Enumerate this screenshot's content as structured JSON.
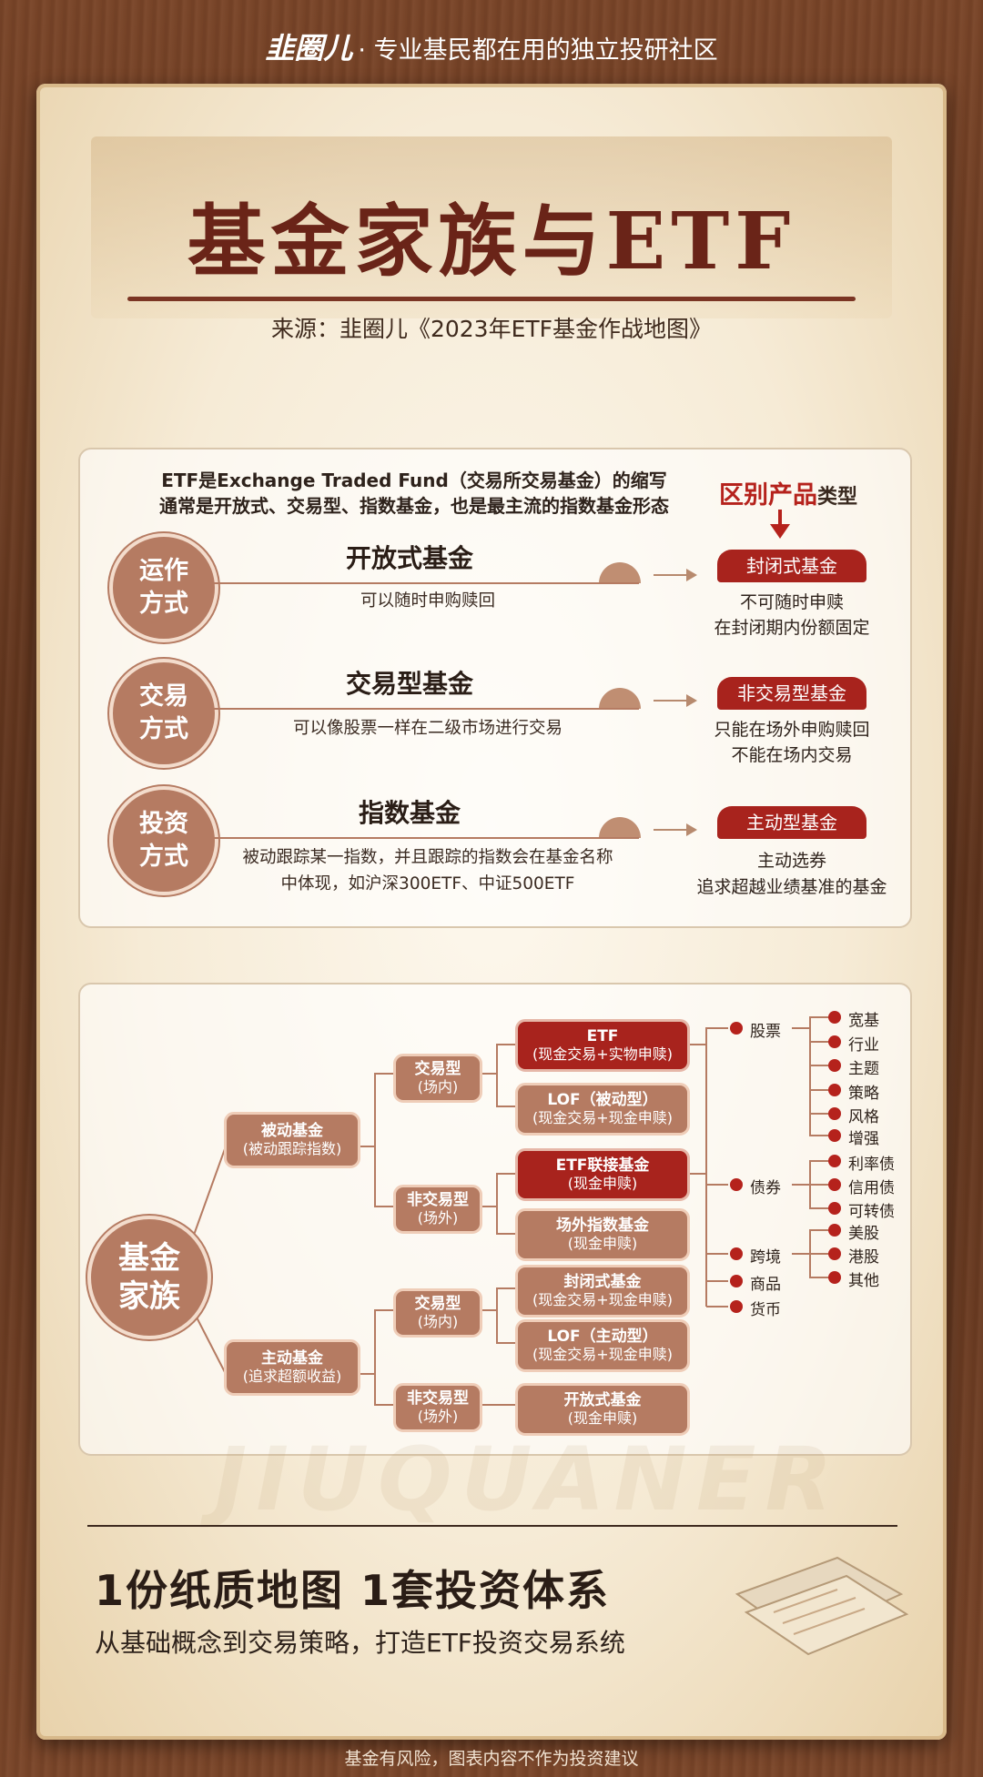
{
  "header": {
    "logo": "韭圈儿",
    "tagline": "· 专业基民都在用的独立投研社区"
  },
  "title": "基金家族与ETF",
  "source": "来源：韭圈儿《2023年ETF基金作战地图》",
  "intro": {
    "line1": "ETF是Exchange Traded Fund（交易所交易基金）的缩写",
    "line2": "通常是开放式、交易型、指数基金，也是最主流的指数基金形态"
  },
  "diff_header": {
    "main": "区别产品",
    "suffix": "类型"
  },
  "rows": [
    {
      "circle": [
        "运作",
        "方式"
      ],
      "name": "开放式基金",
      "desc": [
        "可以随时申购赎回"
      ],
      "tag": "封闭式基金",
      "tag_desc": [
        "不可随时申赎",
        "在封闭期内份额固定"
      ]
    },
    {
      "circle": [
        "交易",
        "方式"
      ],
      "name": "交易型基金",
      "desc": [
        "可以像股票一样在二级市场进行交易"
      ],
      "tag": "非交易型基金",
      "tag_desc": [
        "只能在场外申购赎回",
        "不能在场内交易"
      ]
    },
    {
      "circle": [
        "投资",
        "方式"
      ],
      "name": "指数基金",
      "desc": [
        "被动跟踪某一指数，并且跟踪的指数会在基金名称",
        "中体现，如沪深300ETF、中证500ETF"
      ],
      "tag": "主动型基金",
      "tag_desc": [
        "主动选券",
        "追求超越业绩基准的基金"
      ]
    }
  ],
  "tree": {
    "root": [
      "基金",
      "家族"
    ],
    "passive": {
      "l1": "被动基金",
      "l2": "(被动跟踪指数)"
    },
    "active": {
      "l1": "主动基金",
      "l2": "(追求超额收益)"
    },
    "trade_in_1": {
      "l1": "交易型",
      "l2": "(场内)"
    },
    "trade_out_1": {
      "l1": "非交易型",
      "l2": "(场外)"
    },
    "trade_in_2": {
      "l1": "交易型",
      "l2": "(场内)"
    },
    "trade_out_2": {
      "l1": "非交易型",
      "l2": "(场外)"
    },
    "etf": {
      "l1": "ETF",
      "l2": "(现金交易+实物申赎)"
    },
    "lof_passive": {
      "l1": "LOF（被动型）",
      "l2": "(现金交易+现金申赎)"
    },
    "etf_link": {
      "l1": "ETF联接基金",
      "l2": "(现金申赎)"
    },
    "otc_index": {
      "l1": "场外指数基金",
      "l2": "(现金申赎)"
    },
    "closed": {
      "l1": "封闭式基金",
      "l2": "(现金交易+现金申赎)"
    },
    "lof_active": {
      "l1": "LOF（主动型）",
      "l2": "(现金交易+现金申赎)"
    },
    "open": {
      "l1": "开放式基金",
      "l2": "(现金申赎)"
    },
    "assets": [
      "股票",
      "债券",
      "跨境",
      "商品",
      "货币"
    ],
    "stock_sub": [
      "宽基",
      "行业",
      "主题",
      "策略",
      "风格",
      "增强"
    ],
    "bond_sub": [
      "利率债",
      "信用债",
      "可转债"
    ],
    "cross_sub": [
      "美股",
      "港股",
      "其他"
    ]
  },
  "watermark": "JIUQUANER",
  "promo": {
    "title": "1份纸质地图 1套投资体系",
    "subtitle": "从基础概念到交易策略，打造ETF投资交易系统"
  },
  "footer": "基金有风险，图表内容不作为投资建议",
  "colors": {
    "accent_red": "#a8231d",
    "node_brown": "#b57b62",
    "title_brown": "#6a2418"
  }
}
